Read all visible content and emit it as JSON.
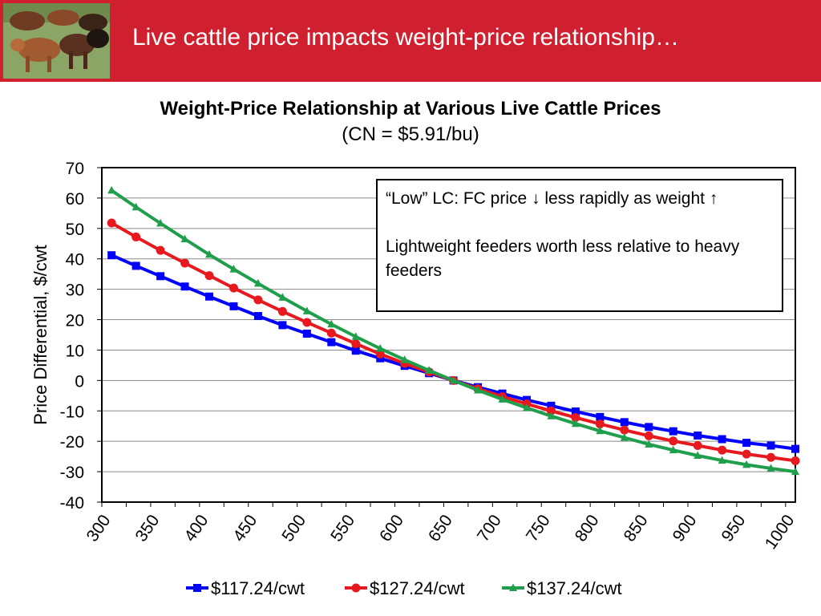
{
  "slide": {
    "title": "Live cattle price impacts weight-price relationship…"
  },
  "chart_data": {
    "type": "line",
    "title": "Weight-Price Relationship at Various Live Cattle Prices",
    "subtitle": "(CN = $5.91/bu)",
    "xlabel": "",
    "ylabel": "Price Differential, $/cwt",
    "ylim": [
      -40,
      70
    ],
    "xlim": [
      300,
      1000
    ],
    "yticks": [
      70,
      60,
      50,
      40,
      30,
      20,
      10,
      0,
      -10,
      -20,
      -30,
      -40
    ],
    "xticks": [
      300,
      350,
      400,
      450,
      500,
      550,
      600,
      650,
      700,
      750,
      800,
      850,
      900,
      950,
      1000
    ],
    "grid": true,
    "legend": "bottom",
    "x": [
      310,
      335,
      360,
      385,
      410,
      435,
      460,
      485,
      510,
      535,
      560,
      585,
      610,
      635,
      660,
      685,
      710,
      735,
      760,
      785,
      810,
      835,
      860,
      885,
      910,
      935,
      960,
      985,
      1010
    ],
    "series": [
      {
        "name": "$117.24/cwt",
        "color": "#0000ff",
        "marker": "square",
        "values": [
          41.2,
          37.7,
          34.3,
          30.9,
          27.6,
          24.4,
          21.2,
          18.2,
          15.4,
          12.6,
          9.8,
          7.3,
          4.8,
          2.4,
          0.0,
          -2.2,
          -4.3,
          -6.4,
          -8.3,
          -10.2,
          -12.0,
          -13.7,
          -15.3,
          -16.7,
          -18.1,
          -19.3,
          -20.5,
          -21.4,
          -22.5
        ]
      },
      {
        "name": "$127.24/cwt",
        "color": "#e8191e",
        "marker": "circle",
        "values": [
          51.8,
          47.2,
          42.8,
          38.6,
          34.5,
          30.4,
          26.5,
          22.7,
          19.1,
          15.6,
          12.1,
          8.7,
          5.6,
          2.8,
          0.0,
          -2.7,
          -5.3,
          -7.7,
          -10.0,
          -12.2,
          -14.3,
          -16.3,
          -18.2,
          -19.9,
          -21.4,
          -22.9,
          -24.2,
          -25.3,
          -26.4
        ]
      },
      {
        "name": "$137.24/cwt",
        "color": "#1f9e4b",
        "marker": "triangle",
        "values": [
          62.5,
          57.0,
          51.7,
          46.5,
          41.4,
          36.6,
          31.9,
          27.3,
          22.8,
          18.5,
          14.4,
          10.5,
          6.8,
          3.3,
          0.0,
          -3.2,
          -6.2,
          -9.0,
          -11.7,
          -14.2,
          -16.6,
          -18.8,
          -21.0,
          -22.9,
          -24.7,
          -26.3,
          -27.7,
          -28.9,
          -30.0
        ]
      }
    ],
    "annotation": {
      "line1": "“Low” LC: FC price ↓ less rapidly as weight ↑",
      "line2": "Lightweight feeders worth less relative to heavy feeders"
    }
  }
}
